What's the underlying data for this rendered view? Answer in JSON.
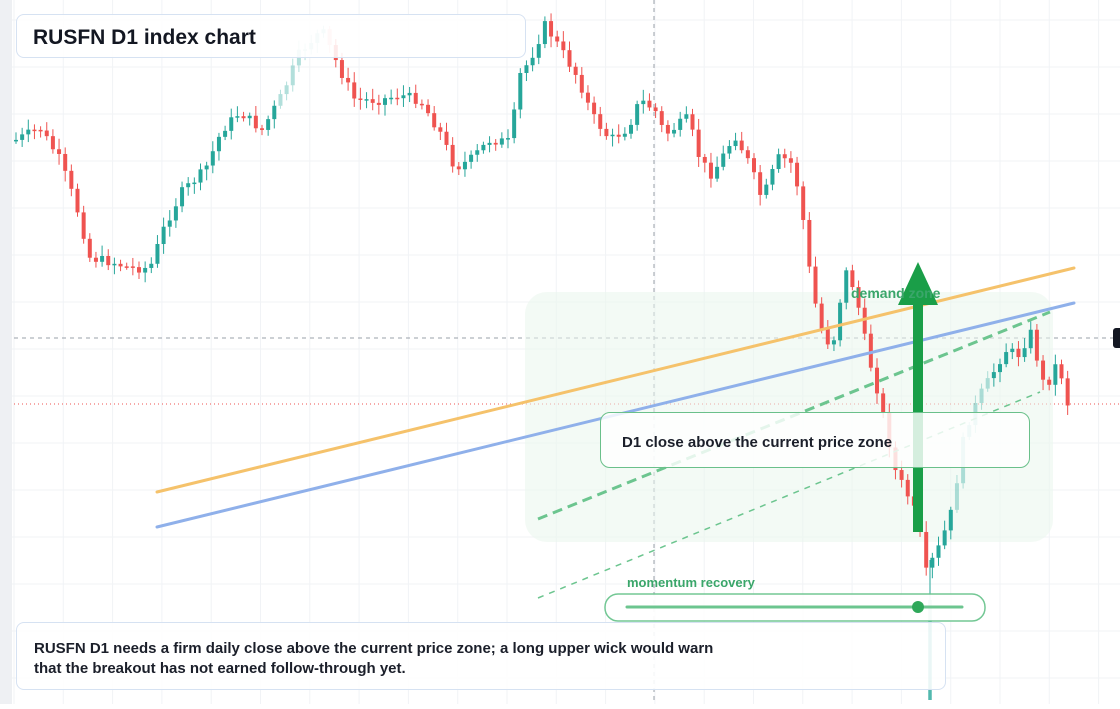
{
  "title": "RUSFN D1 index chart",
  "note": "RUSFN D1 needs a firm daily close above the current price zone; a long upper wick would warn that the breakout has not earned follow-through yet.",
  "annotations": {
    "callout": "D1 close above the current price zone",
    "demand_zone": "demand zone",
    "momentum": "momentum recovery"
  },
  "colors": {
    "up": "#26a69a",
    "down": "#ef5350",
    "trend_orange": "#f5c26b",
    "trend_blue": "#8fb0ea",
    "signal_green": "#1a9e48",
    "zone_fill": "#e9f6ec",
    "momentum_line": "#6cc58f"
  },
  "chart_data": {
    "type": "candlestick",
    "series_count": 150,
    "trendlines": [
      "orange resistance",
      "blue resistance",
      "green dashed support",
      "green dotted support"
    ],
    "signal": "upward arrow into demand zone",
    "grid": true
  }
}
